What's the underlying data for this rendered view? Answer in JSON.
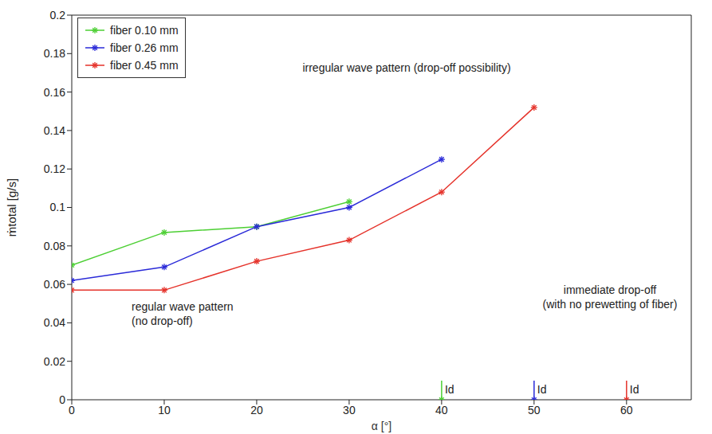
{
  "chart_data": {
    "type": "line",
    "x_label": "α [°]",
    "y_label": "ṁtotal [g/s]",
    "xlim": [
      0,
      67
    ],
    "xticks": [
      0,
      10,
      20,
      30,
      40,
      50,
      60
    ],
    "ylim": [
      0,
      0.2
    ],
    "yticks": [
      0,
      0.02,
      0.04,
      0.06,
      0.08,
      0.1,
      0.12,
      0.14,
      0.16,
      0.18,
      0.2
    ],
    "grid": false,
    "legend": "upper left",
    "marker": "asterisk",
    "series": [
      {
        "name": "fiber 0.10 mm",
        "color": "#4ccf33",
        "x": [
          0,
          10,
          20,
          30
        ],
        "values": [
          0.07,
          0.087,
          0.09,
          0.103
        ],
        "drop_off": {
          "x": 40,
          "y": 0,
          "label": "Id"
        }
      },
      {
        "name": "fiber 0.26 mm",
        "color": "#2a2ad8",
        "x": [
          0,
          10,
          20,
          30,
          40
        ],
        "values": [
          0.062,
          0.069,
          0.09,
          0.1,
          0.125
        ],
        "drop_off": {
          "x": 50,
          "y": 0,
          "label": "Id"
        }
      },
      {
        "name": "fiber 0.45 mm",
        "color": "#e5322a",
        "x": [
          0,
          10,
          20,
          30,
          40,
          50
        ],
        "values": [
          0.057,
          0.057,
          0.072,
          0.083,
          0.108,
          0.152
        ],
        "drop_off": {
          "x": 60,
          "y": 0,
          "label": "Id"
        }
      }
    ],
    "annotations": [
      {
        "lines": [
          "irregular wave pattern (drop-off possibility)"
        ]
      },
      {
        "lines": [
          "regular wave pattern",
          "(no drop-off)"
        ]
      },
      {
        "lines": [
          "immediate drop-off",
          "(with no prewetting of fiber)"
        ]
      }
    ]
  }
}
